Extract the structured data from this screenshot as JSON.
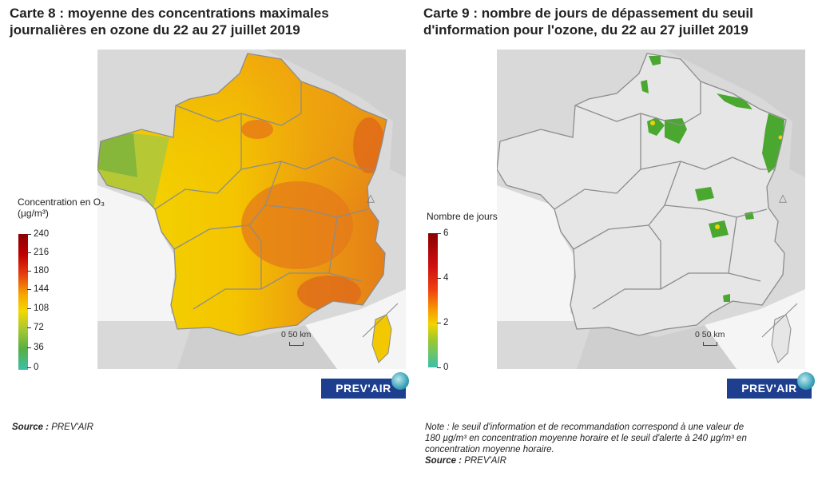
{
  "map8": {
    "title_line1": "Carte 8 : moyenne des concentrations maximales",
    "title_line2": "journalières en ozone du 22 au 27 juillet 2019",
    "legend_title_line1": "Concentration en O₃",
    "legend_title_line2": "(µg/m³)",
    "legend_ticks": [
      "240",
      "216",
      "180",
      "144",
      "108",
      "72",
      "36",
      "0"
    ],
    "scale_label": "0  50 km",
    "logo": "PREV'AIR",
    "source_label": "Source :",
    "source_value": " PREV'AIR",
    "colors": {
      "low": "#3bbfa8",
      "mid": "#f5d400",
      "high": "#8b0000"
    }
  },
  "map9": {
    "title_line1": "Carte 9 : nombre de jours de dépassement du seuil",
    "title_line2": "d'information pour l'ozone, du 22 au 27 juillet 2019",
    "legend_title": "Nombre de jours",
    "legend_ticks": [
      "6",
      "4",
      "2",
      "0"
    ],
    "scale_label": "0  50 km",
    "logo": "PREV'AIR",
    "note_line1": "Note : le seuil d'information et de recommandation correspond à une valeur de",
    "note_line2": "180 µg/m³ en concentration moyenne horaire et le seuil d'alerte à 240 µg/m³ en",
    "note_line3": "concentration moyenne horaire.",
    "source_label": "Source :",
    "source_value": " PREV'AIR",
    "colors": {
      "exceed": "#4aa830",
      "background": "#e6e6e6"
    }
  }
}
